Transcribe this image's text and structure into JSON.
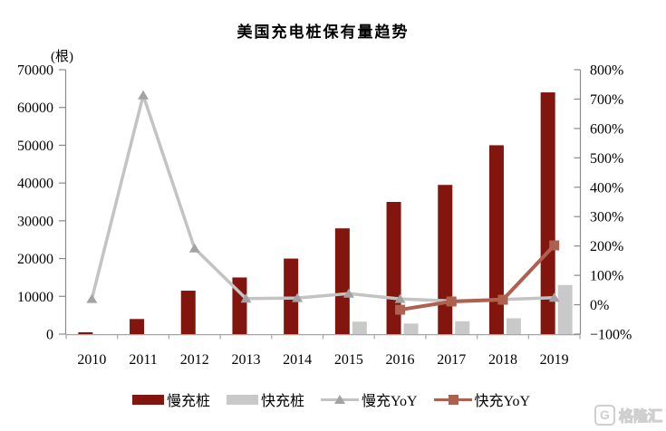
{
  "chart_data": {
    "type": "combo_bar_line",
    "title": "美国充电桩保有量趋势",
    "unit_label": "(根)",
    "categories": [
      "2010",
      "2011",
      "2012",
      "2013",
      "2014",
      "2015",
      "2016",
      "2017",
      "2018",
      "2019"
    ],
    "series": [
      {
        "name": "慢充桩",
        "type": "bar",
        "axis": "left",
        "color": "#82150e",
        "values": [
          500,
          4000,
          11500,
          15000,
          20000,
          28000,
          35000,
          39500,
          50000,
          64000
        ]
      },
      {
        "name": "快充桩",
        "type": "bar",
        "axis": "left",
        "color": "#c9c9c9",
        "values": [
          null,
          null,
          null,
          null,
          null,
          3300,
          2800,
          3400,
          4200,
          13000
        ]
      },
      {
        "name": "慢充YoY",
        "type": "line",
        "axis": "right",
        "color": "#c3c3c3",
        "marker": "triangle",
        "marker_color": "#a3a3a3",
        "values": [
          20,
          713,
          192,
          21,
          23,
          38,
          20,
          13,
          18,
          24
        ]
      },
      {
        "name": "快充YoY",
        "type": "line",
        "axis": "right",
        "color": "#b0604f",
        "marker": "square",
        "marker_color": "#b0604f",
        "values": [
          null,
          null,
          null,
          null,
          null,
          null,
          -17,
          11,
          17,
          202
        ]
      }
    ],
    "y_left": {
      "min": 0,
      "max": 70000,
      "step": 10000
    },
    "y_right": {
      "min": -100,
      "max": 800,
      "step": 100,
      "suffix": "%"
    },
    "legend_position": "bottom",
    "gridlines": false
  },
  "watermark": {
    "icon": "G",
    "text": "格隆汇"
  }
}
